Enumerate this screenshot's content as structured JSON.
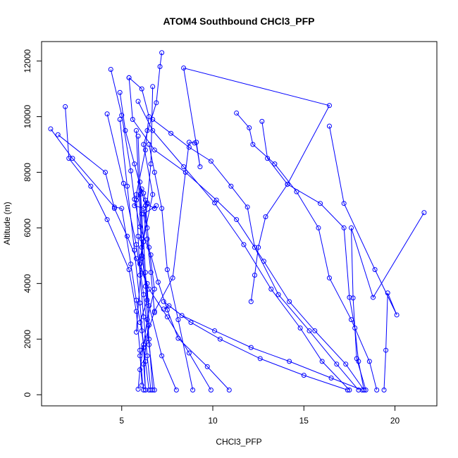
{
  "chart_data": {
    "type": "line",
    "title": "ATOM4 Southbound CHCl3_PFP",
    "xlabel": "CHCl3_PFP",
    "ylabel": "Altitude (m)",
    "xlim": [
      0.6,
      22.3
    ],
    "ylim": [
      -400,
      12700
    ],
    "xticks": [
      5,
      10,
      15,
      20
    ],
    "yticks": [
      0,
      2000,
      4000,
      6000,
      8000,
      10000,
      12000
    ],
    "grid": false,
    "legend": "none",
    "point_style": "open-circle",
    "colors": {
      "series": "#0000ff",
      "axis": "#000000",
      "background": "#ffffff"
    },
    "series": [
      {
        "x": [
          10.9,
          9.7,
          8.1,
          7.5,
          7.0,
          6.6,
          6.0,
          5.7,
          5.5,
          5.0,
          4.4
        ],
        "y": [
          170,
          1010,
          2030,
          3050,
          4050,
          5030,
          6040,
          7030,
          8050,
          10050,
          11700
        ]
      },
      {
        "x": [
          6.3,
          6.2,
          6.5,
          6.4,
          6.0,
          6.1,
          6.7,
          6.2,
          6.9,
          7.1,
          7.2
        ],
        "y": [
          170,
          1100,
          2500,
          4000,
          4700,
          5300,
          7200,
          9000,
          10500,
          11800,
          12300
        ]
      },
      {
        "x": [
          6.5,
          6.3,
          6.1,
          5.8,
          5.5,
          5.0,
          4.6,
          2.3,
          1.1
        ],
        "y": [
          170,
          1200,
          2300,
          3400,
          4700,
          6700,
          6750,
          8500,
          9560
        ]
      },
      {
        "x": [
          6.2,
          6.0,
          6.8,
          7.8,
          8.7,
          9.0,
          9.1,
          9.3,
          8.4,
          16.4,
          14.1,
          12.9,
          12.5,
          12.3,
          12.1
        ],
        "y": [
          170,
          1400,
          3000,
          4200,
          9080,
          9050,
          9080,
          8200,
          11750,
          10400,
          7570,
          6400,
          5300,
          4300,
          3350
        ]
      },
      {
        "x": [
          18.3,
          17.3,
          15.6,
          14.2,
          12.8,
          11.3,
          10.2,
          8.5,
          6.8,
          5.6,
          5.4
        ],
        "y": [
          170,
          1100,
          2300,
          3350,
          4800,
          6300,
          7000,
          8000,
          8800,
          9900,
          11400
        ]
      },
      {
        "x": [
          17.5,
          16.0,
          14.8,
          13.2,
          11.7,
          10.1,
          8.4,
          6.7,
          5.9
        ],
        "y": [
          170,
          1200,
          2400,
          3800,
          5400,
          6900,
          8200,
          9500,
          10550
        ]
      },
      {
        "x": [
          19.0,
          18.6,
          17.6,
          16.4,
          15.8,
          14.6,
          13.4,
          12.2,
          12.0,
          11.3
        ],
        "y": [
          170,
          1200,
          2700,
          4200,
          6000,
          7300,
          8300,
          9000,
          9600,
          10130
        ]
      },
      {
        "x": [
          19.4,
          19.5,
          19.6,
          20.1,
          18.9,
          17.2,
          16.4
        ],
        "y": [
          170,
          1600,
          3660,
          2870,
          4500,
          6880,
          9660
        ]
      },
      {
        "x": [
          18.3,
          18.0,
          17.8,
          17.5,
          17.2,
          15.9,
          14.1,
          13.0,
          12.7
        ],
        "y": [
          170,
          1200,
          2400,
          3500,
          6000,
          6880,
          7570,
          8500,
          9830
        ]
      },
      {
        "x": [
          18.4,
          17.9,
          17.7,
          17.6,
          18.8,
          21.6
        ],
        "y": [
          170,
          1300,
          3480,
          6000,
          3500,
          6550
        ]
      },
      {
        "x": [
          18.0,
          16.8,
          15.3,
          13.6,
          12.3,
          11.9,
          11.0,
          9.9,
          8.7,
          7.7,
          6.7
        ],
        "y": [
          170,
          1100,
          2300,
          3600,
          5300,
          6750,
          7500,
          8400,
          8900,
          9400,
          9900
        ]
      },
      {
        "x": [
          18.2,
          16.5,
          14.2,
          12.1,
          10.1,
          8.3,
          7.3
        ],
        "y": [
          170,
          600,
          1200,
          1700,
          2300,
          2850,
          3350
        ]
      },
      {
        "x": [
          17.4,
          15.0,
          12.6,
          10.4,
          8.8,
          7.6,
          7.3
        ],
        "y": [
          170,
          700,
          1300,
          2000,
          2600,
          3200,
          3080
        ]
      },
      {
        "x": [
          8.9,
          8.1,
          7.5,
          7.2,
          6.8,
          6.5
        ],
        "y": [
          170,
          2700,
          4500,
          6700,
          8000,
          9000
        ]
      },
      {
        "x": [
          9.9,
          8.7,
          7.5,
          6.5,
          5.8,
          5.3,
          4.6,
          4.1,
          1.5
        ],
        "y": [
          170,
          1500,
          2800,
          3800,
          4900,
          5700,
          6700,
          8000,
          9350
        ]
      },
      {
        "x": [
          6.1,
          6.0,
          5.8,
          5.4,
          4.2,
          3.3,
          2.1,
          1.9
        ],
        "y": [
          340,
          1600,
          3000,
          4500,
          6300,
          7500,
          8500,
          10360
        ]
      },
      {
        "x": [
          5.9,
          6.0,
          6.2,
          6.4,
          6.8,
          6.5,
          6.3,
          5.7,
          5.2,
          4.9
        ],
        "y": [
          200,
          900,
          1800,
          2700,
          3800,
          5300,
          6800,
          8300,
          9500,
          10870
        ]
      },
      {
        "x": [
          5.8,
          6.1,
          6.4,
          6.6,
          6.7
        ],
        "y": [
          2250,
          4900,
          6900,
          8300,
          11080
        ]
      },
      {
        "x": [
          6.6,
          6.4,
          6.2,
          6.0,
          5.9,
          5.8,
          6.3,
          6.4,
          6.5,
          6.1,
          5.4
        ],
        "y": [
          170,
          1400,
          2800,
          4300,
          5700,
          7200,
          8800,
          9500,
          10000,
          11000,
          11400
        ]
      },
      {
        "x": [
          6.3,
          6.2,
          6.0,
          5.7,
          5.3,
          4.9
        ],
        "y": [
          170,
          1700,
          3300,
          5200,
          7500,
          9900
        ]
      },
      {
        "x": [
          6.8,
          6.5,
          6.2,
          5.8,
          5.1,
          4.2
        ],
        "y": [
          170,
          1800,
          3600,
          5400,
          7600,
          10100
        ]
      },
      {
        "x": [
          8.0,
          7.2,
          6.5,
          6.1,
          5.8
        ],
        "y": [
          170,
          1400,
          3200,
          5000,
          9500
        ]
      },
      {
        "x": [
          6.7,
          6.5,
          6.3,
          6.1,
          5.9
        ],
        "y": [
          170,
          2000,
          3900,
          5600,
          9300
        ]
      },
      {
        "x": [
          6.0,
          6.4,
          6.3,
          6.2,
          6.1,
          6.0
        ],
        "y": [
          2600,
          3400,
          4400,
          5500,
          6500,
          7650
        ]
      },
      {
        "x": [
          6.8,
          6.6,
          6.4,
          6.2,
          6.9,
          6.8,
          6.4,
          6.3,
          6.2,
          6.1,
          6.0,
          5.8,
          5.7,
          6.2,
          6.4
        ],
        "y": [
          2950,
          4400,
          5600,
          6500,
          6800,
          6700,
          6850,
          7000,
          7250,
          7400,
          7200,
          7000,
          6800,
          6700,
          6000
        ]
      }
    ]
  }
}
